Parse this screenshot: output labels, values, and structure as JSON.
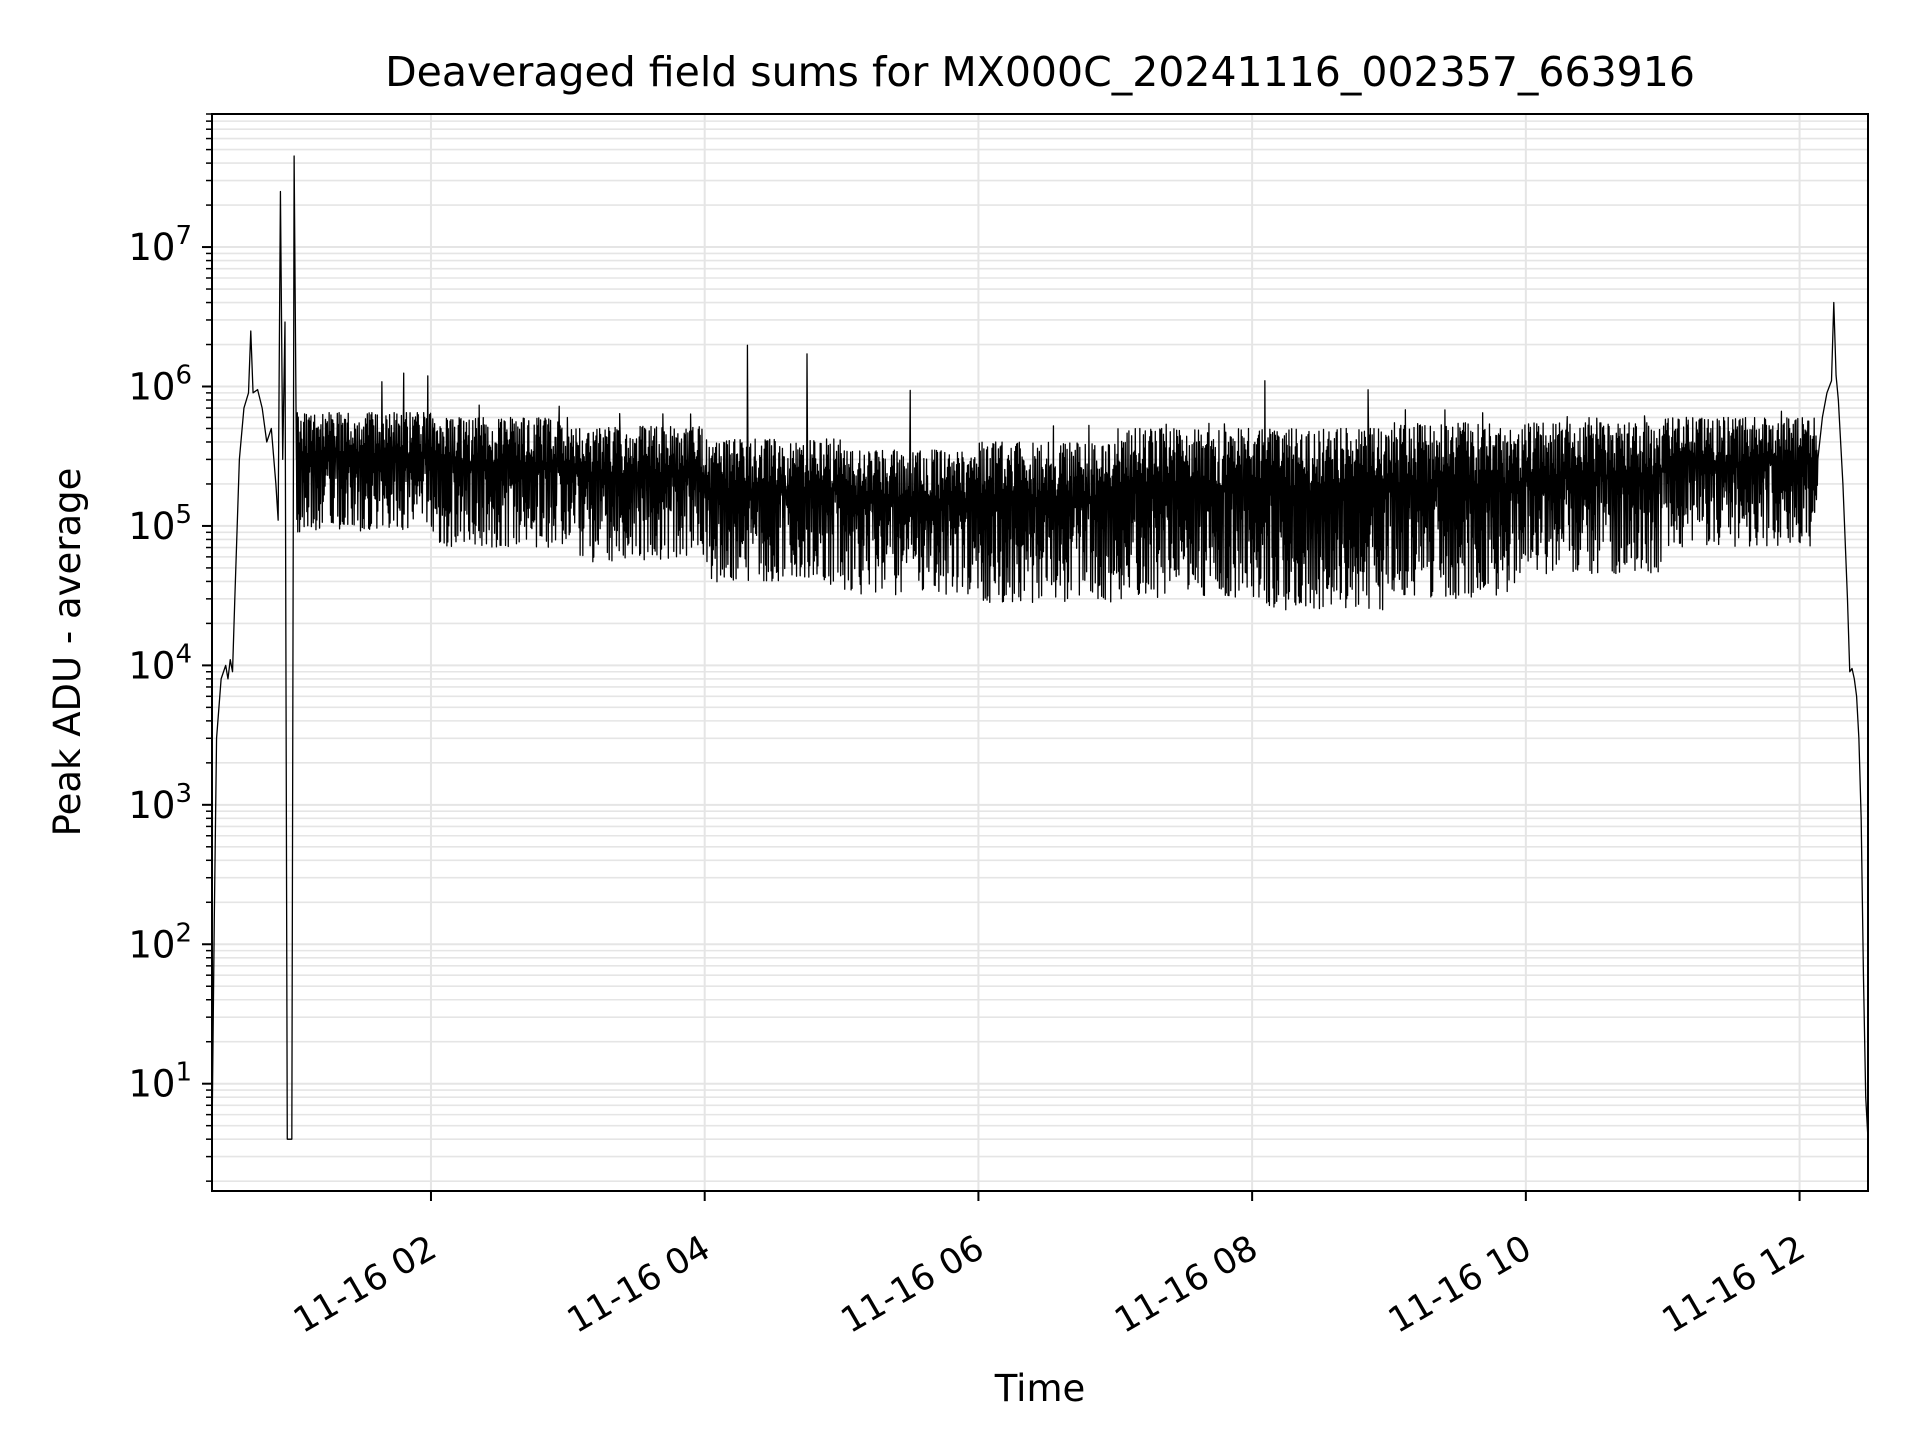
{
  "chart_data": {
    "type": "line",
    "title": "Deaveraged field sums for MX000C_20241116_002357_663916",
    "xlabel": "Time",
    "ylabel": "Peak ADU - average",
    "y_scale": "log",
    "ylim": [
      1.7,
      90000000.0
    ],
    "xlim": [
      "2024-11-16 00:24",
      "2024-11-16 12:30"
    ],
    "x_ticks": [
      "2024-11-16 02:00",
      "2024-11-16 04:00",
      "2024-11-16 06:00",
      "2024-11-16 08:00",
      "2024-11-16 10:00",
      "2024-11-16 12:00"
    ],
    "x_tick_labels": [
      "11-16 02",
      "11-16 04",
      "11-16 06",
      "11-16 08",
      "11-16 10",
      "11-16 12"
    ],
    "y_ticks": [
      10,
      100,
      1000,
      10000,
      100000,
      1000000,
      10000000
    ],
    "y_tick_labels": [
      {
        "base": "10",
        "exp": "1"
      },
      {
        "base": "10",
        "exp": "2"
      },
      {
        "base": "10",
        "exp": "3"
      },
      {
        "base": "10",
        "exp": "4"
      },
      {
        "base": "10",
        "exp": "5"
      },
      {
        "base": "10",
        "exp": "6"
      },
      {
        "base": "10",
        "exp": "7"
      }
    ],
    "grid": true,
    "series_color": "#000000",
    "grid_color": "#e5e5e5",
    "series": [
      {
        "points": [
          [
            "2024-11-16 00:24",
            4
          ],
          [
            "2024-11-16 00:25",
            150
          ],
          [
            "2024-11-16 00:26",
            3000
          ],
          [
            "2024-11-16 00:28",
            8000
          ],
          [
            "2024-11-16 00:30",
            10000
          ],
          [
            "2024-11-16 00:31",
            8000
          ],
          [
            "2024-11-16 00:32",
            11000
          ],
          [
            "2024-11-16 00:33",
            9000
          ],
          [
            "2024-11-16 00:34",
            30000
          ],
          [
            "2024-11-16 00:36",
            300000
          ],
          [
            "2024-11-16 00:38",
            700000
          ],
          [
            "2024-11-16 00:40",
            900000
          ],
          [
            "2024-11-16 00:41",
            2500000
          ],
          [
            "2024-11-16 00:42",
            900000
          ],
          [
            "2024-11-16 00:44",
            950000
          ],
          [
            "2024-11-16 00:46",
            700000
          ],
          [
            "2024-11-16 00:48",
            400000
          ],
          [
            "2024-11-16 00:50",
            500000
          ],
          [
            "2024-11-16 00:52",
            200000
          ],
          [
            "2024-11-16 00:53",
            110000
          ],
          [
            "2024-11-16 00:54",
            25000000
          ],
          [
            "2024-11-16 00:55",
            300000
          ],
          [
            "2024-11-16 00:56",
            2900000
          ],
          [
            "2024-11-16 00:57",
            4
          ],
          [
            "2024-11-16 00:58",
            4
          ],
          [
            "2024-11-16 00:59",
            4
          ],
          [
            "2024-11-16 01:00",
            45000000
          ],
          [
            "2024-11-16 01:01",
            300000
          ]
        ],
        "noisy_segments": [
          [
            "2024-11-16 01:01",
            "2024-11-16 02:00",
            90000,
            650000,
            1300000
          ],
          [
            "2024-11-16 02:00",
            "2024-11-16 03:00",
            70000,
            600000,
            800000
          ],
          [
            "2024-11-16 03:00",
            "2024-11-16 04:00",
            55000,
            520000,
            650000
          ],
          [
            "2024-11-16 04:00",
            "2024-11-16 05:00",
            38000,
            420000,
            2100000
          ],
          [
            "2024-11-16 05:00",
            "2024-11-16 06:00",
            32000,
            350000,
            1000000
          ],
          [
            "2024-11-16 06:00",
            "2024-11-16 07:00",
            28000,
            400000,
            600000
          ],
          [
            "2024-11-16 07:00",
            "2024-11-16 08:00",
            30000,
            500000,
            550000
          ],
          [
            "2024-11-16 08:00",
            "2024-11-16 09:00",
            25000,
            500000,
            1400000
          ],
          [
            "2024-11-16 09:00",
            "2024-11-16 10:00",
            30000,
            550000,
            700000
          ],
          [
            "2024-11-16 10:00",
            "2024-11-16 11:00",
            45000,
            550000,
            620000
          ],
          [
            "2024-11-16 11:00",
            "2024-11-16 12:08",
            70000,
            600000,
            700000
          ]
        ],
        "tail_points": [
          [
            "2024-11-16 12:08",
            300000
          ],
          [
            "2024-11-16 12:10",
            600000
          ],
          [
            "2024-11-16 12:12",
            900000
          ],
          [
            "2024-11-16 12:14",
            1100000
          ],
          [
            "2024-11-16 12:15",
            4000000
          ],
          [
            "2024-11-16 12:16",
            1200000
          ],
          [
            "2024-11-16 12:17",
            800000
          ],
          [
            "2024-11-16 12:19",
            200000
          ],
          [
            "2024-11-16 12:21",
            30000
          ],
          [
            "2024-11-16 12:22",
            9000
          ],
          [
            "2024-11-16 12:23",
            9500
          ],
          [
            "2024-11-16 12:24",
            8000
          ],
          [
            "2024-11-16 12:25",
            6000
          ],
          [
            "2024-11-16 12:26",
            3000
          ],
          [
            "2024-11-16 12:27",
            800
          ],
          [
            "2024-11-16 12:28",
            60
          ],
          [
            "2024-11-16 12:29",
            8
          ],
          [
            "2024-11-16 12:30",
            4
          ]
        ]
      }
    ]
  }
}
